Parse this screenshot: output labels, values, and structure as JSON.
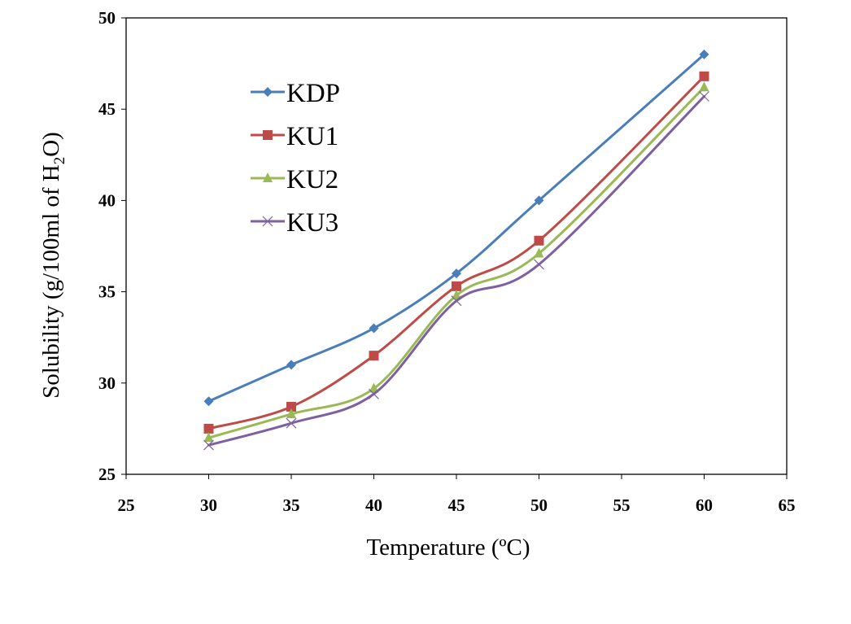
{
  "chart_data": {
    "type": "line",
    "title": "",
    "xlabel": "Temperature (ºC)",
    "ylabel": "Solubility (g/100ml of H2O)",
    "ylabel_parts": {
      "pre": "Solubility (g/100ml of H",
      "sub": "2",
      "post": "O)"
    },
    "xlim": [
      25,
      65
    ],
    "ylim": [
      25,
      50
    ],
    "xticks": [
      25,
      30,
      35,
      40,
      45,
      50,
      55,
      60,
      65
    ],
    "yticks": [
      25,
      30,
      35,
      40,
      45,
      50
    ],
    "grid": false,
    "legend_position": "top-left (inside plot)",
    "smooth_lines": true,
    "x": [
      30,
      35,
      40,
      45,
      50,
      60
    ],
    "series": [
      {
        "name": "KDP",
        "color": "#4A7EBB",
        "marker": "diamond",
        "values": [
          29.0,
          31.0,
          33.0,
          36.0,
          40.0,
          48.0
        ]
      },
      {
        "name": "KU1",
        "color": "#BE4B48",
        "marker": "square",
        "values": [
          27.5,
          28.7,
          31.5,
          35.3,
          37.8,
          46.8
        ]
      },
      {
        "name": "KU2",
        "color": "#98B954",
        "marker": "triangle",
        "values": [
          27.0,
          28.3,
          29.7,
          34.8,
          37.1,
          46.2
        ]
      },
      {
        "name": "KU3",
        "color": "#7D60A0",
        "marker": "x",
        "values": [
          26.6,
          27.8,
          29.4,
          34.5,
          36.5,
          45.7
        ]
      }
    ]
  }
}
